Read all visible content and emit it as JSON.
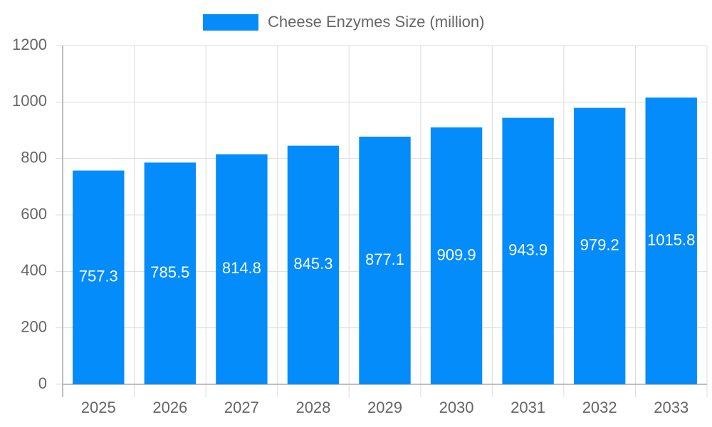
{
  "chart_data": {
    "type": "bar",
    "categories": [
      "2025",
      "2026",
      "2027",
      "2028",
      "2029",
      "2030",
      "2031",
      "2032",
      "2033"
    ],
    "series": [
      {
        "name": "Cheese Enzymes Size (million)",
        "color": "#038cfa",
        "values": [
          757.3,
          785.5,
          814.8,
          845.3,
          877.1,
          909.9,
          943.9,
          979.2,
          1015.8
        ]
      }
    ],
    "ylim": [
      0,
      1200
    ],
    "yticks": [
      0,
      200,
      400,
      600,
      800,
      1000,
      1200
    ],
    "grid": true,
    "legend": "top"
  }
}
